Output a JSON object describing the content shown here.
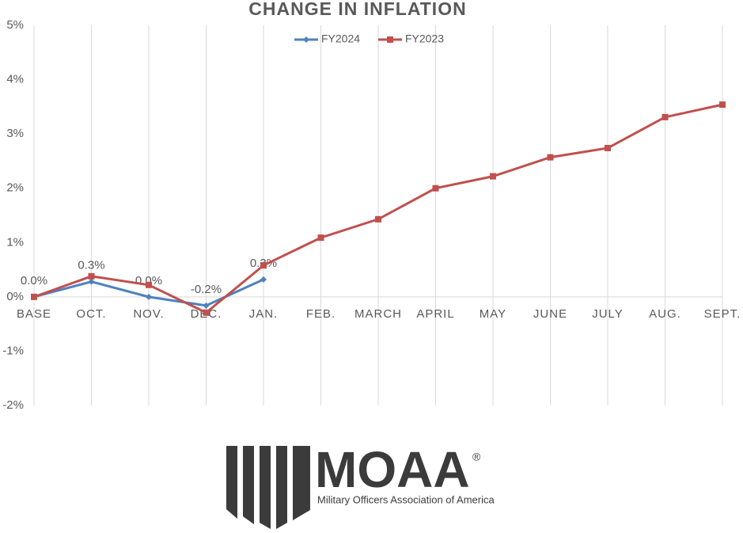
{
  "chart_data": {
    "type": "line",
    "title": "CHANGE IN INFLATION",
    "categories": [
      "BASE",
      "OCT.",
      "NOV.",
      "DEC.",
      "JAN.",
      "FEB.",
      "MARCH",
      "APRIL",
      "MAY",
      "JUNE",
      "JULY",
      "AUG.",
      "SEPT."
    ],
    "series": [
      {
        "name": "FY2024",
        "color": "#4f81bd",
        "marker": "diamond",
        "values": [
          0,
          0.28,
          0,
          -0.16,
          0.32,
          null,
          null,
          null,
          null,
          null,
          null,
          null,
          null
        ],
        "value_labels": [
          "0.0%",
          "0.3%",
          "0.0%",
          "-0.2%",
          "0.3%",
          null,
          null,
          null,
          null,
          null,
          null,
          null,
          null
        ]
      },
      {
        "name": "FY2023",
        "color": "#c0504d",
        "marker": "square",
        "values": [
          0,
          0.38,
          0.22,
          -0.29,
          0.58,
          1.09,
          1.43,
          2.0,
          2.22,
          2.57,
          2.74,
          3.31,
          3.54
        ]
      }
    ],
    "ylim": [
      -2,
      5
    ],
    "yticks": [
      {
        "value": -2,
        "label": "-2%"
      },
      {
        "value": -1,
        "label": "-1%"
      },
      {
        "value": 0,
        "label": "0%"
      },
      {
        "value": 1,
        "label": "1%"
      },
      {
        "value": 2,
        "label": "2%"
      },
      {
        "value": 3,
        "label": "3%"
      },
      {
        "value": 4,
        "label": "4%"
      },
      {
        "value": 5,
        "label": "5%"
      }
    ],
    "grid": "x",
    "legend": "top"
  },
  "logo": {
    "name": "MOAA",
    "mark": "®",
    "tagline": "Military Officers Association of America"
  }
}
